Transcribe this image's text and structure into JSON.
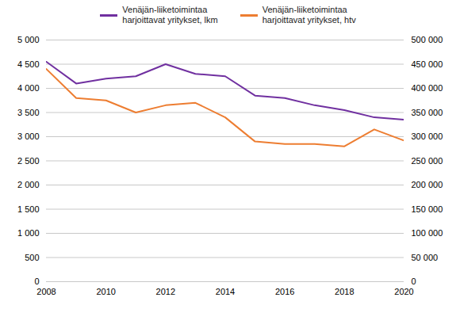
{
  "chart_data": {
    "type": "line",
    "x": [
      2008,
      2009,
      2010,
      2011,
      2012,
      2013,
      2014,
      2015,
      2016,
      2017,
      2018,
      2019,
      2020
    ],
    "xlim": [
      2008,
      2020
    ],
    "xticks": [
      2008,
      2010,
      2012,
      2014,
      2016,
      2018,
      2020
    ],
    "ylim": [
      0,
      5000
    ],
    "yticks": [
      0,
      500,
      {
        "value": 1000,
        "label": "1 000"
      },
      {
        "value": 1500,
        "label": "1 500"
      },
      {
        "value": 2000,
        "label": "2 000"
      },
      {
        "value": 2500,
        "label": "2 500"
      },
      {
        "value": 3000,
        "label": "3 000"
      },
      {
        "value": 3500,
        "label": "3 500"
      },
      {
        "value": 4000,
        "label": "4 000"
      },
      {
        "value": 4500,
        "label": "4 500"
      },
      {
        "value": 5000,
        "label": "5 000"
      }
    ],
    "y2lim": [
      0,
      500000
    ],
    "y2ticks": [
      0,
      {
        "value": 50000,
        "label": "50 000"
      },
      {
        "value": 100000,
        "label": "100 000"
      },
      {
        "value": 150000,
        "label": "150 000"
      },
      {
        "value": 200000,
        "label": "200 000"
      },
      {
        "value": 250000,
        "label": "250 000"
      },
      {
        "value": 300000,
        "label": "300 000"
      },
      {
        "value": 350000,
        "label": "350 000"
      },
      {
        "value": 400000,
        "label": "400 000"
      },
      {
        "value": 450000,
        "label": "450 000"
      },
      {
        "value": 500000,
        "label": "500 000"
      }
    ],
    "grid": true,
    "legend": "top",
    "series": [
      {
        "name": "Venäjän-liiketoimintaa\nharjoittavat yritykset, lkm",
        "color": "#7030a0",
        "values": [
          4550,
          4100,
          4200,
          4250,
          4500,
          4300,
          4250,
          3850,
          3800,
          3650,
          3550,
          3400,
          3350
        ]
      },
      {
        "name": "Venäjän-liiketoimintaa\nharjoittavat yritykset, htv",
        "color": "#ed7d31",
        "axis": "y2",
        "values": [
          440000,
          380000,
          375000,
          350000,
          365000,
          370000,
          340000,
          290000,
          285000,
          285000,
          280000,
          315000,
          292000
        ]
      }
    ]
  }
}
